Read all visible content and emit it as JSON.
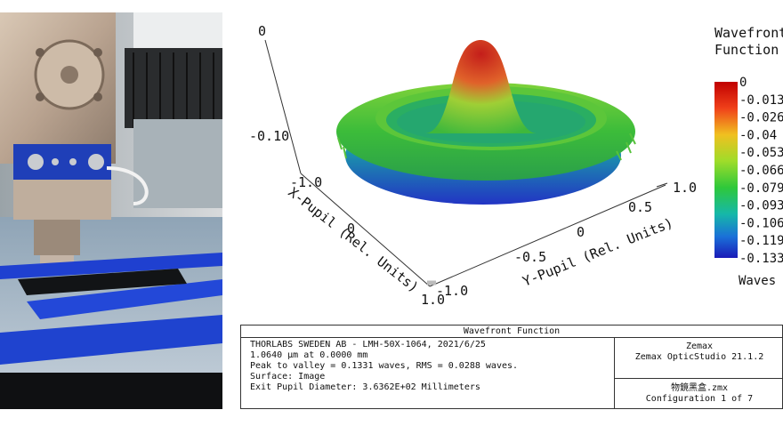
{
  "plot": {
    "title_line1": "Wavefront",
    "title_line2": "Function",
    "z_ticks": [
      "0",
      "-0.10"
    ],
    "x_axis_label": "X-Pupil (Rel. Units)",
    "y_axis_label": "Y-Pupil (Rel. Units)",
    "x_ticks": [
      "-1.0",
      "0",
      "1.0"
    ],
    "y_ticks": [
      "-1.0",
      "-0.5",
      "0",
      "0.5",
      "1.0"
    ],
    "legend_values": [
      "0",
      "-0.013",
      "-0.026",
      "-0.04",
      "-0.053",
      "-0.066",
      "-0.079",
      "-0.093",
      "-0.106",
      "-0.119",
      "-0.133"
    ],
    "legend_unit": "Waves",
    "colors": {
      "peak": "#c0201e",
      "mid": "#3fbf3a",
      "low": "#1c2fbf"
    }
  },
  "info": {
    "header": "Wavefront Function",
    "lines": [
      "THORLABS SWEDEN AB - LMH-50X-1064, 2021/6/25",
      "1.0640 µm at 0.0000 mm",
      "Peak to valley = 0.1331 waves, RMS = 0.0288 waves.",
      "Surface: Image",
      "Exit Pupil Diameter: 3.6362E+02 Millimeters"
    ],
    "vendor": "Zemax",
    "product": "Zemax OpticStudio 21.1.2",
    "file": "物鏡黑盒.zmx",
    "config": "Configuration 1 of 7"
  }
}
